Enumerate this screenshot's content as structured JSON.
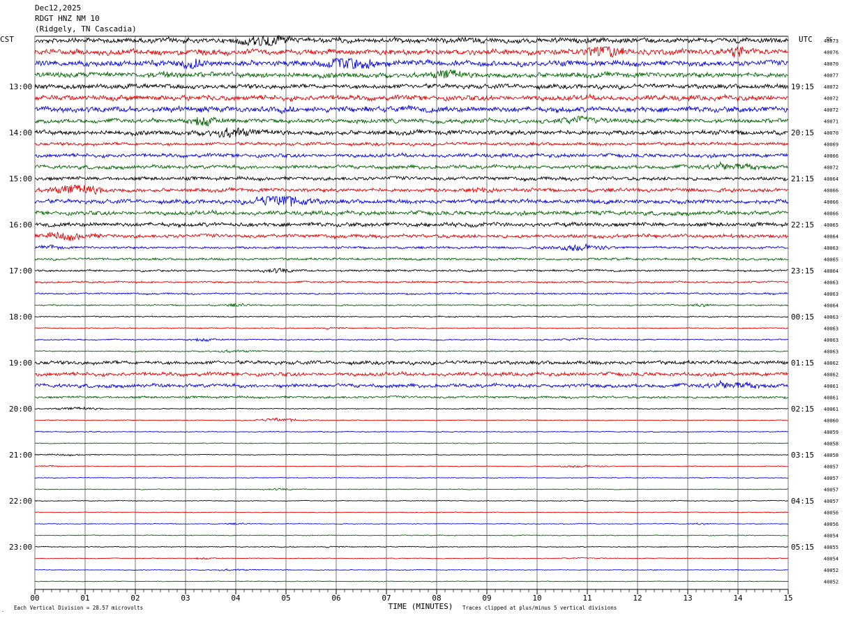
{
  "header": {
    "date": "Dec12,2025",
    "station": "RDGT HNZ NM 10",
    "location": "(Ridgely, TN Cascadia)"
  },
  "chart_data": {
    "type": "line",
    "title": "RDGT HNZ NM 10",
    "left_axis_label": "CST",
    "right_axis_label": "UTC",
    "dc_header": "DC",
    "xlabel": "TIME (MINUTES)",
    "xlim": [
      0,
      15
    ],
    "x_ticks": [
      "00",
      "01",
      "02",
      "03",
      "04",
      "05",
      "06",
      "07",
      "08",
      "09",
      "10",
      "11",
      "12",
      "13",
      "14",
      "15"
    ],
    "footer_left": "Each Vertical Division =   28.57 microvolts",
    "footer_right": "Traces clipped at plus/minus 5 vertical divisions",
    "trace_colors": [
      "#000000",
      "#e00000",
      "#0000e0",
      "#006400"
    ],
    "traces_per_hour": 4,
    "minutes_per_trace": 15,
    "hour_labels_cst": [
      "13:00",
      "14:00",
      "15:00",
      "16:00",
      "17:00",
      "18:00",
      "19:00",
      "20:00",
      "21:00",
      "22:00",
      "23:00"
    ],
    "hour_labels_utc": [
      "19:15",
      "20:15",
      "21:15",
      "22:15",
      "23:15",
      "00:15",
      "01:15",
      "02:15",
      "03:15",
      "04:15",
      "05:15"
    ],
    "first_hour_label_trace_index": 4,
    "dc_offsets": [
      "40073",
      "40076",
      "40070",
      "40077",
      "40072",
      "40072",
      "40072",
      "40071",
      "40070",
      "40069",
      "40066",
      "40072",
      "40064",
      "40066",
      "40066",
      "40066",
      "40065",
      "40064",
      "40063",
      "40065",
      "40064",
      "40063",
      "40063",
      "40064",
      "40063",
      "40063",
      "40063",
      "40063",
      "40062",
      "40062",
      "40061",
      "40061",
      "40061",
      "40060",
      "40059",
      "40058",
      "40058",
      "40057",
      "40057",
      "40057",
      "40057",
      "40056",
      "40056",
      "40054",
      "40055",
      "40054",
      "40052",
      "40052"
    ],
    "trace_activity": [
      5.5,
      6,
      6,
      5.5,
      5,
      5.5,
      6,
      4.5,
      5,
      3.5,
      4,
      4,
      4,
      4,
      4.5,
      4.5,
      4.5,
      4,
      2.5,
      2.5,
      2,
      2,
      1.8,
      1.5,
      1.3,
      1.2,
      1.3,
      1.2,
      4,
      4,
      4,
      2.5,
      1,
      0.9,
      0.9,
      0.9,
      0.8,
      0.8,
      0.8,
      0.8,
      0.8,
      0.8,
      0.8,
      0.9,
      0.9,
      0.8,
      0.8,
      0.8
    ]
  }
}
